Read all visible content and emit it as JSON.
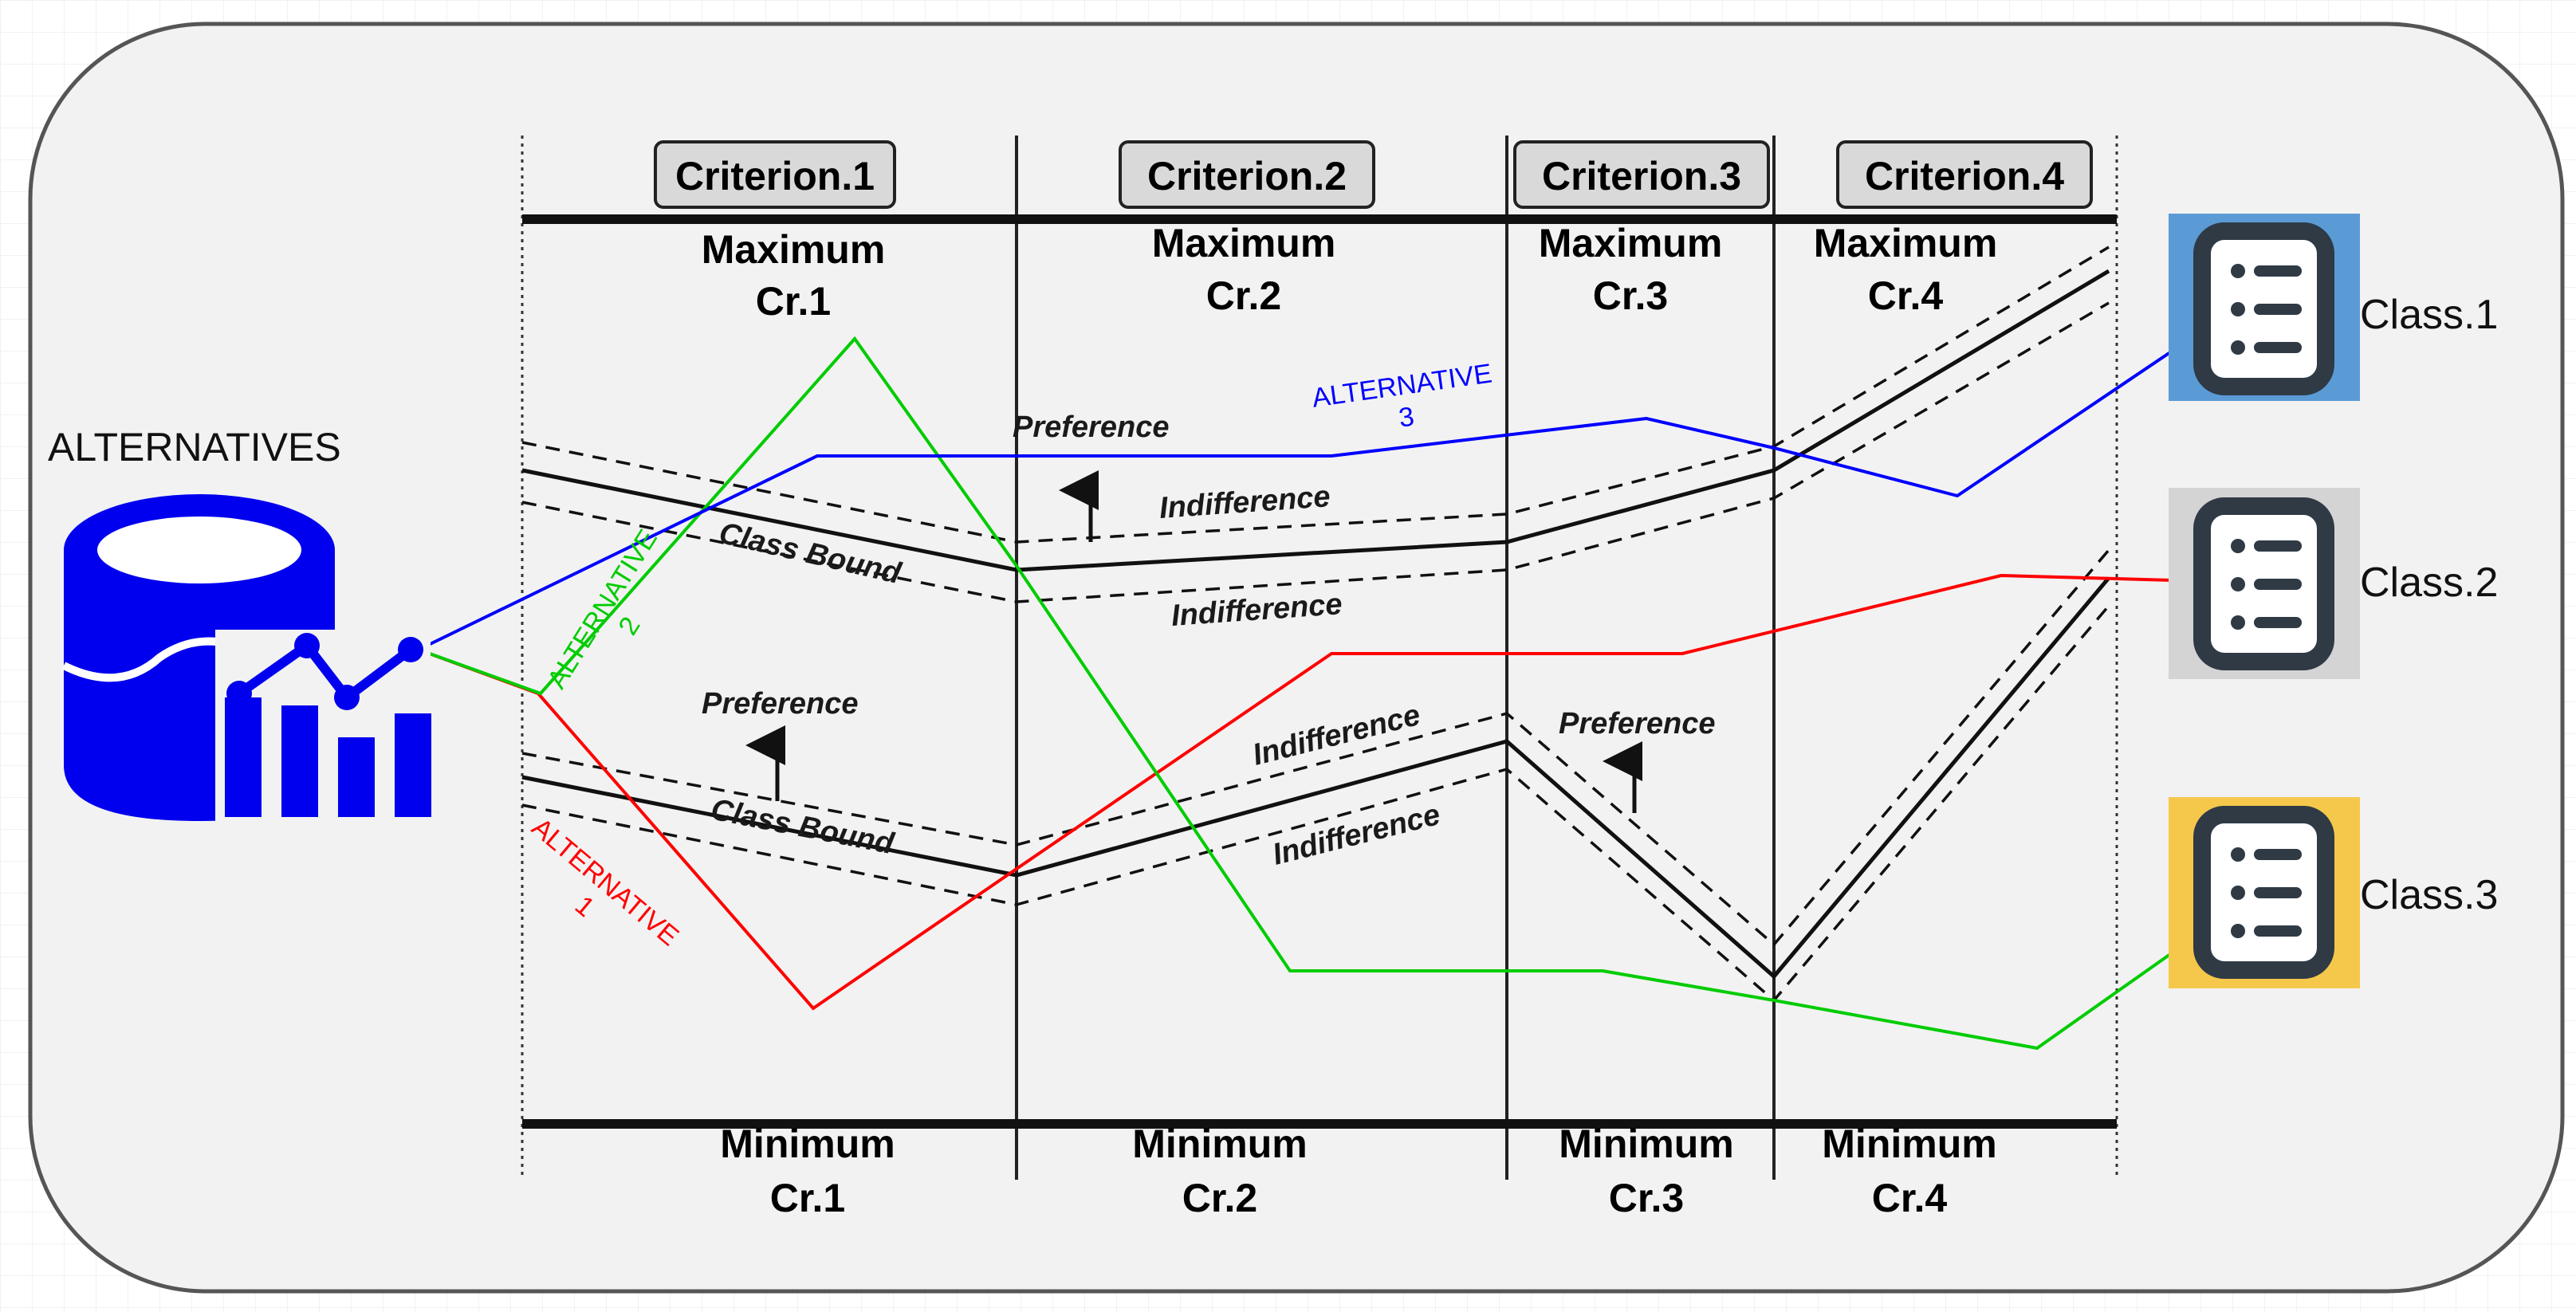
{
  "source_title": "ALTERNATIVES",
  "criteria": [
    {
      "header": "Criterion.1",
      "max_label": "Maximum",
      "max_name": "Cr.1",
      "min_label": "Minimum",
      "min_name": "Cr.1"
    },
    {
      "header": "Criterion.2",
      "max_label": "Maximum",
      "max_name": "Cr.2",
      "min_label": "Minimum",
      "min_name": "Cr.2"
    },
    {
      "header": "Criterion.3",
      "max_label": "Maximum",
      "max_name": "Cr.3",
      "min_label": "Minimum",
      "min_name": "Cr.3"
    },
    {
      "header": "Criterion.4",
      "max_label": "Maximum",
      "max_name": "Cr.4",
      "min_label": "Minimum",
      "min_name": "Cr.4"
    }
  ],
  "alternatives": [
    {
      "line1": "ALTERNATIVE",
      "line2": "1",
      "color": "#ff0000"
    },
    {
      "line1": "ALTERNATIVE",
      "line2": "2",
      "color": "#00cc00"
    },
    {
      "line1": "ALTERNATIVE",
      "line2": "3",
      "color": "#0000ff"
    }
  ],
  "classes": [
    {
      "label": "Class.1",
      "color": "#5b9bd5",
      "icon": "list-icon"
    },
    {
      "label": "Class.2",
      "color": "#d4d4d4",
      "icon": "list-icon"
    },
    {
      "label": "Class.3",
      "color": "#f5c84c",
      "icon": "list-icon"
    }
  ],
  "bound_labels": {
    "class_bound": "Class Bound",
    "preference": "Preference",
    "indifference": "Indifference"
  }
}
